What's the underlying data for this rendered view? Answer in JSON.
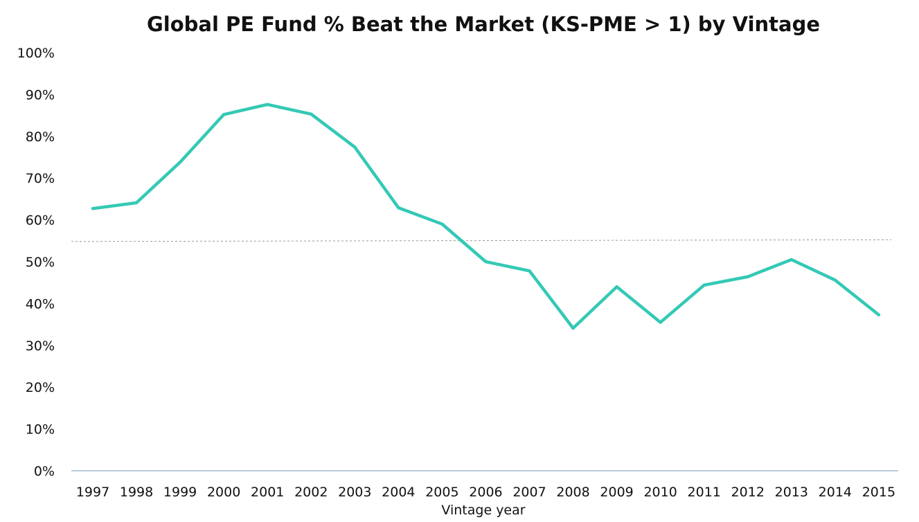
{
  "chart_data": {
    "type": "line",
    "title": "Global PE Fund % Beat the Market (KS-PME > 1) by Vintage",
    "xlabel": "Vintage year",
    "ylabel": "",
    "categories": [
      "1997",
      "1998",
      "1999",
      "2000",
      "2001",
      "2002",
      "2003",
      "2004",
      "2005",
      "2006",
      "2007",
      "2008",
      "2009",
      "2010",
      "2011",
      "2012",
      "2013",
      "2014",
      "2015"
    ],
    "series": [
      {
        "values": [
          62.7,
          64.1,
          73.8,
          85.2,
          87.6,
          85.3,
          77.4,
          62.9,
          59.0,
          50.0,
          47.8,
          34.1,
          44.0,
          35.5,
          44.4,
          46.4,
          50.5,
          45.6,
          37.3
        ],
        "color": "#33C9B5"
      }
    ],
    "reference_line": {
      "value": 55,
      "style": "dashed",
      "color": "#999999"
    },
    "y_ticks": [
      "0%",
      "10%",
      "20%",
      "30%",
      "40%",
      "50%",
      "60%",
      "70%",
      "80%",
      "90%",
      "100%"
    ],
    "ylim": [
      0,
      100
    ],
    "grid": false,
    "legend": "none",
    "axis_color": "#A9BCD0"
  }
}
